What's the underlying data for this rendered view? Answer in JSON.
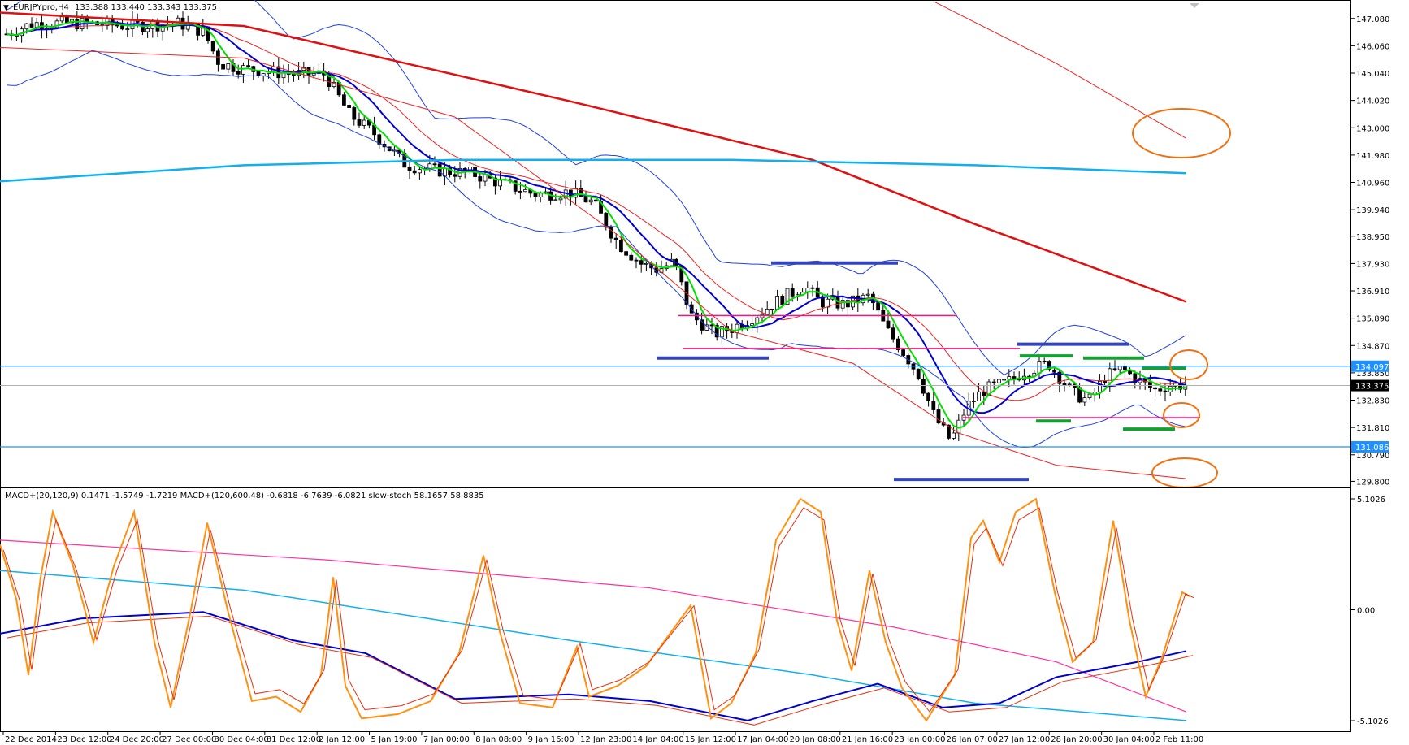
{
  "window": {
    "symbol_title": "EURJPYpro,H4",
    "ohlc": "133.388 133.440 133.343 133.375",
    "indicator_title": "MACD+(20,120,9) 0.1471 -1.5749 -1.7219  MACD+(120,600,48) -0.6818 -6.7639 -6.0821  slow-stoch 58.1657 58.8835"
  },
  "colors": {
    "background": "#ffffff",
    "grid_border": "#000000",
    "bull_candle": "#ffffff",
    "bear_candle": "#000000",
    "ma_green": "#00e000",
    "ma_blue": "#0000d0",
    "ma_red_thin": "#ee2222",
    "ma_red_thick": "#e01010",
    "ma_cyan": "#10b0f0",
    "bollinger": "#2040e0",
    "hline_cyan": "#1e90ff",
    "pink_lines": "#ff1080",
    "blue_bars": "#3344bb",
    "green_bars": "#12a030",
    "circles": "#f07010",
    "stoch_orange": "#ff9010",
    "stoch_red": "#e03010",
    "macd_pink": "#ff30a0"
  },
  "price_axis": {
    "labels": [
      "147.080",
      "146.060",
      "145.040",
      "144.020",
      "143.000",
      "141.980",
      "140.960",
      "139.940",
      "138.950",
      "137.930",
      "136.910",
      "135.890",
      "134.870",
      "133.850",
      "132.830",
      "131.810",
      "130.790",
      "129.800"
    ],
    "max": 147.74,
    "min": 129.6,
    "badges": [
      {
        "text": "134.097",
        "value": 134.097,
        "color": "#1e90ff",
        "text_color": "#ffffff"
      },
      {
        "text": "133.375",
        "value": 133.375,
        "color": "#000000",
        "text_color": "#ffffff"
      },
      {
        "text": "131.086",
        "value": 131.086,
        "color": "#1e90ff",
        "text_color": "#ffffff"
      }
    ]
  },
  "indicator_axis": {
    "labels": [
      "5.1026",
      "0.00",
      "-5.1026"
    ]
  },
  "time_axis": {
    "labels": [
      "22 Dec 2014",
      "23 Dec 12:00",
      "24 Dec 20:00",
      "27 Dec 00:00",
      "30 Dec 04:00",
      "31 Dec 12:00",
      "2 Jan 12:00",
      "5 Jan 19:00",
      "7 Jan 00:00",
      "8 Jan 08:00",
      "9 Jan 16:00",
      "12 Jan 23:00",
      "14 Jan 04:00",
      "15 Jan 12:00",
      "17 Jan 04:00",
      "20 Jan 08:00",
      "21 Jan 16:00",
      "23 Jan 00:00",
      "26 Jan 07:00",
      "27 Jan 12:00",
      "28 Jan 20:00",
      "30 Jan 04:00",
      "2 Feb 11:00"
    ]
  },
  "chart_data": {
    "type": "line",
    "panels": [
      {
        "name": "price",
        "horizontal_levels": [
          134.097,
          131.086
        ],
        "current_price": 133.375,
        "support_resistance_lines": [
          135.99,
          134.76,
          132.18
        ]
      },
      {
        "name": "indicator",
        "range": [
          -5.1026,
          5.1026
        ]
      }
    ]
  }
}
